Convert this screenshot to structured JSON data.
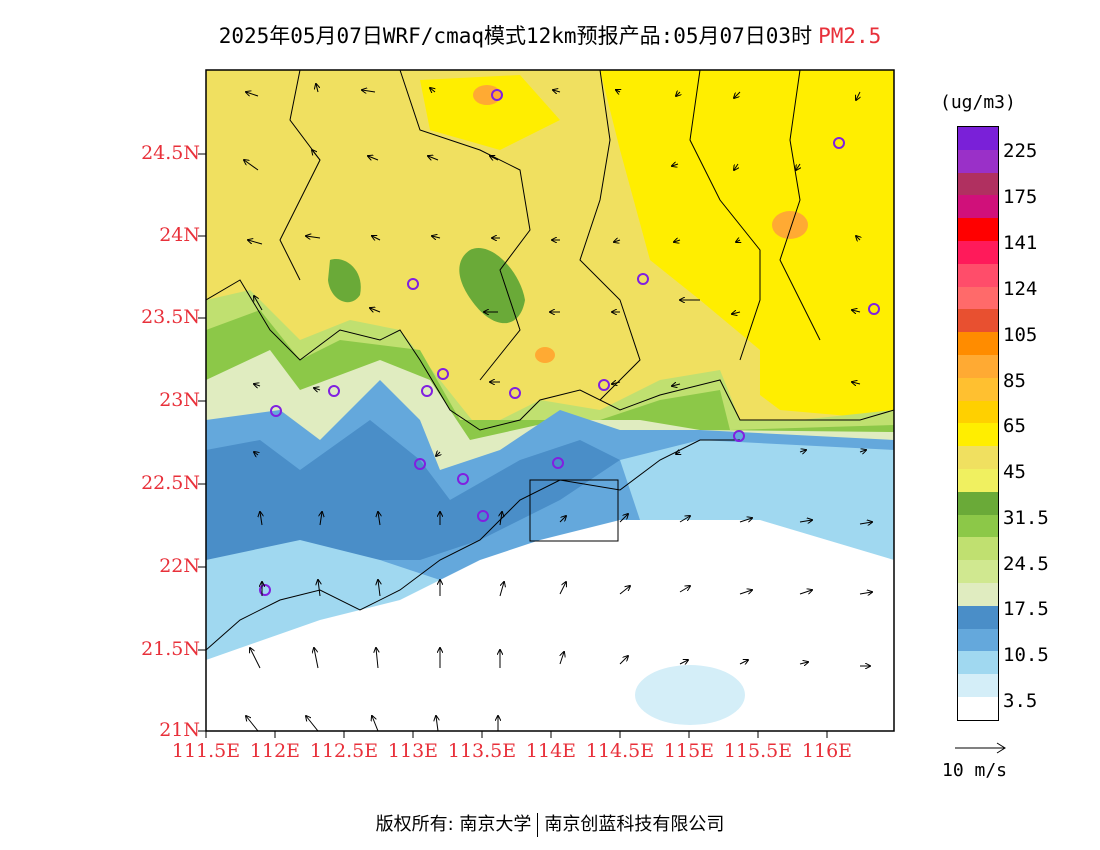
{
  "title": {
    "main": "2025年05月07日WRF/cmaq模式12km预报产品:05月07日03时",
    "pollutant": "PM2.5"
  },
  "axes": {
    "lat_labels": [
      "24.5N",
      "24N",
      "23.5N",
      "23N",
      "22.5N",
      "22N",
      "21.5N",
      "21N"
    ],
    "lon_labels": [
      "111.5E",
      "112E",
      "112.5E",
      "113E",
      "113.5E",
      "114E",
      "114.5E",
      "115E",
      "115.5E",
      "116E"
    ]
  },
  "colorbar": {
    "unit": "(ug/m3)",
    "tick_labels": [
      "225",
      "175",
      "141",
      "124",
      "105",
      "85",
      "65",
      "45",
      "31.5",
      "24.5",
      "17.5",
      "10.5",
      "3.5"
    ],
    "colors": [
      "#7a20d8",
      "#9a30c8",
      "#b03060",
      "#d0107a",
      "#ff0000",
      "#ff1a5a",
      "#ff4d6a",
      "#ff6a6a",
      "#e85030",
      "#ff8c00",
      "#ffaa33",
      "#ffc030",
      "#ffd000",
      "#ffee00",
      "#f0e060",
      "#f0f060",
      "#6aaa38",
      "#8cc848",
      "#c0e070",
      "#d0e890",
      "#e0ecc0",
      "#4a8ec8",
      "#64a8dc",
      "#a0d8f0",
      "#d4eef8",
      "#ffffff"
    ]
  },
  "legend": {
    "vector_label": "10 m/s"
  },
  "footer": {
    "left": "版权所有: 南京大学",
    "right": "南京创蓝科技有限公司"
  },
  "colors": {
    "label_red": "#e8303a",
    "yellow_high": "#ffee00",
    "yellow_low": "#f0e060",
    "green": "#6aaa38",
    "blue": "#4a8ec8",
    "light_blue": "#a0d8f0",
    "station_marker": "#8020e0"
  }
}
